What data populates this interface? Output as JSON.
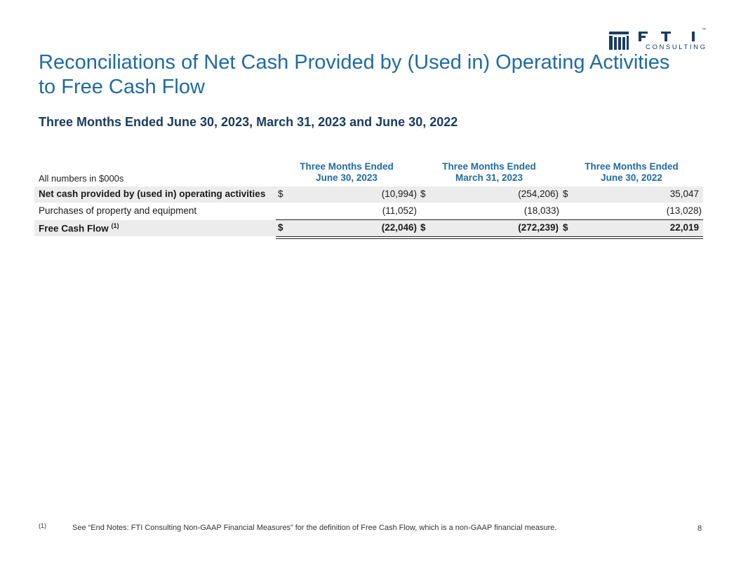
{
  "header": {
    "logo_text_main": "FTI",
    "logo_text_sub": "CONSULTING",
    "logo_tm": "™"
  },
  "title_line1": "Reconciliations of Net Cash Provided by (Used in) Operating Activities",
  "title_line2": "to Free Cash Flow",
  "subtitle": "Three Months Ended June 30, 2023, March 31, 2023 and June 30, 2022",
  "units_label": "All numbers in $000s",
  "columns": [
    {
      "line1": "Three Months Ended",
      "line2": "June 30, 2023"
    },
    {
      "line1": "Three Months Ended",
      "line2": "March 31, 2023"
    },
    {
      "line1": "Three Months Ended",
      "line2": "June 30, 2022"
    }
  ],
  "rows": [
    {
      "label": "Net cash provided by (used in) operating activities",
      "values": [
        "(10,994)",
        "(254,206)",
        "35,047"
      ],
      "dollar": "$"
    },
    {
      "label": "Purchases of property and equipment",
      "values": [
        "(11,052)",
        "(18,033)",
        "(13,028)"
      ]
    },
    {
      "label": "Free Cash Flow",
      "footnote_ref": "(1)",
      "values": [
        "(22,046)",
        "(272,239)",
        "22,019"
      ],
      "dollar": "$"
    }
  ],
  "footnote": {
    "mark": "(1)",
    "text": "See “End Notes: FTI Consulting Non-GAAP Financial Measures” for the definition of Free Cash Flow, which is a non-GAAP financial measure."
  },
  "page_number": "8",
  "colors": {
    "title": "#1f6aa5",
    "subtitle": "#1b3c61",
    "shade": "#ececec"
  }
}
